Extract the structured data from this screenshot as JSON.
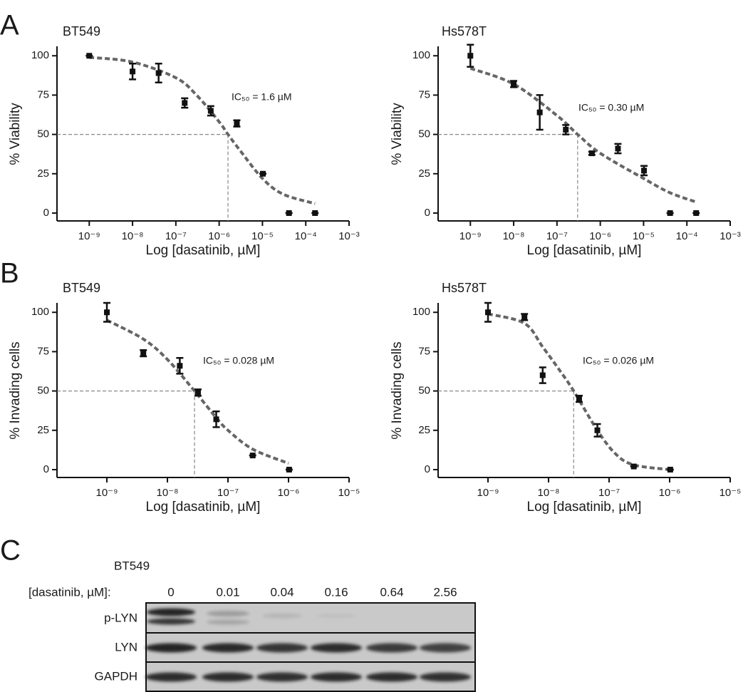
{
  "panel_labels": [
    "A",
    "B",
    "C"
  ],
  "chart_data": [
    {
      "type": "scatter",
      "title": "BT549",
      "ylabel": "% Viability",
      "xlabel": "Log [dasatinib, µM]",
      "xlog": true,
      "color": "#111111",
      "fit_color": "#666666",
      "x": [
        1e-09,
        1e-08,
        4e-08,
        1.6e-07,
        6.4e-07,
        2.56e-06,
        1.024e-05,
        4.096e-05,
        0.00016384
      ],
      "values": [
        100,
        90,
        89,
        70,
        65,
        57,
        25,
        0,
        0
      ],
      "errors": [
        0,
        5,
        6,
        3,
        3,
        2,
        0,
        0,
        0
      ],
      "fit": {
        "x": [
          1e-09,
          1e-08,
          1e-07,
          3e-07,
          1e-06,
          1.6e-06,
          3e-06,
          1e-05,
          3e-05,
          0.00016384
        ],
        "values": [
          99,
          96,
          86,
          75,
          58,
          50,
          40,
          22,
          12,
          6
        ]
      },
      "ic50": 1.6e-06,
      "hline": 50,
      "annotation": "IC₅₀ = 1.6 µM",
      "xlim": [
        1.8e-10,
        0.001
      ],
      "xticks": [
        {
          "value": 1e-09,
          "label": "10⁻⁹"
        },
        {
          "value": 1e-08,
          "label": "10⁻⁸"
        },
        {
          "value": 1e-07,
          "label": "10⁻⁷"
        },
        {
          "value": 1e-06,
          "label": "10⁻⁶"
        },
        {
          "value": 1e-05,
          "label": "10⁻⁵"
        },
        {
          "value": 0.0001,
          "label": "10⁻⁴"
        },
        {
          "value": 0.001,
          "label": "10⁻³"
        }
      ],
      "ylim": [
        -5,
        106
      ],
      "yticks": [
        0,
        25,
        50,
        75,
        100
      ]
    },
    {
      "type": "scatter",
      "title": "Hs578T",
      "ylabel": "% Viability",
      "xlabel": "Log [dasatinib, µM]",
      "xlog": true,
      "color": "#111111",
      "fit_color": "#666666",
      "x": [
        1e-09,
        1e-08,
        4e-08,
        1.6e-07,
        6.4e-07,
        2.56e-06,
        1.024e-05,
        4.096e-05,
        0.00016384
      ],
      "values": [
        100,
        82,
        64,
        53,
        38,
        41,
        27,
        0,
        0
      ],
      "errors": [
        7,
        2,
        11,
        3,
        1,
        3,
        3,
        0,
        0
      ],
      "fit": {
        "x": [
          1e-09,
          1e-08,
          1e-07,
          3e-07,
          1e-06,
          1e-05,
          4e-05,
          0.00016384
        ],
        "values": [
          92,
          82,
          62,
          50,
          38,
          22,
          13,
          7
        ]
      },
      "ic50": 3e-07,
      "hline": 50,
      "annotation": "IC₅₀ = 0.30 µM",
      "xlim": [
        1.8e-10,
        0.001
      ],
      "xticks": [
        {
          "value": 1e-09,
          "label": "10⁻⁹"
        },
        {
          "value": 1e-08,
          "label": "10⁻⁸"
        },
        {
          "value": 1e-07,
          "label": "10⁻⁷"
        },
        {
          "value": 1e-06,
          "label": "10⁻⁶"
        },
        {
          "value": 1e-05,
          "label": "10⁻⁵"
        },
        {
          "value": 0.0001,
          "label": "10⁻⁴"
        },
        {
          "value": 0.001,
          "label": "10⁻³"
        }
      ],
      "ylim": [
        -5,
        106
      ],
      "yticks": [
        0,
        25,
        50,
        75,
        100
      ]
    },
    {
      "type": "scatter",
      "title": "BT549",
      "ylabel": "% Invading cells",
      "xlabel": "Log [dasatinib, µM]",
      "xlog": true,
      "color": "#111111",
      "fit_color": "#666666",
      "x": [
        1e-09,
        4e-09,
        1.6e-08,
        3.2e-08,
        6.4e-08,
        2.56e-07,
        1.024e-06
      ],
      "values": [
        100,
        74,
        66,
        49,
        32,
        9,
        0
      ],
      "errors": [
        6,
        2,
        5,
        2,
        5,
        0,
        0
      ],
      "fit": {
        "x": [
          1e-09,
          4e-09,
          1e-08,
          2.8e-08,
          6.4e-08,
          1e-07,
          2.56e-07,
          1e-06
        ],
        "values": [
          95,
          83,
          70,
          50,
          33,
          25,
          13,
          4
        ]
      },
      "ic50": 2.8e-08,
      "hline": 50,
      "annotation": "IC₅₀ = 0.028 µM",
      "xlim": [
        1.5e-10,
        1e-05
      ],
      "xticks": [
        {
          "value": 1e-09,
          "label": "10⁻⁹"
        },
        {
          "value": 1e-08,
          "label": "10⁻⁸"
        },
        {
          "value": 1e-07,
          "label": "10⁻⁷"
        },
        {
          "value": 1e-06,
          "label": "10⁻⁶"
        },
        {
          "value": 1e-05,
          "label": "10⁻⁵"
        }
      ],
      "ylim": [
        -5,
        106
      ],
      "yticks": [
        0,
        25,
        50,
        75,
        100
      ]
    },
    {
      "type": "scatter",
      "title": "Hs578T",
      "ylabel": "% Invading cells",
      "xlabel": "Log [dasatinib, µM]",
      "xlog": true,
      "color": "#111111",
      "fit_color": "#666666",
      "x": [
        1e-09,
        4e-09,
        8e-09,
        3.2e-08,
        6.4e-08,
        2.56e-07,
        1.024e-06
      ],
      "values": [
        100,
        97,
        60,
        45,
        25,
        2,
        0
      ],
      "errors": [
        6,
        2,
        5,
        2,
        4,
        0,
        0
      ],
      "fit": {
        "x": [
          1e-09,
          4e-09,
          8e-09,
          1.6e-08,
          2.6e-08,
          6.4e-08,
          1.28e-07,
          2.56e-07,
          1e-06
        ],
        "values": [
          99,
          93,
          78,
          62,
          50,
          25,
          10,
          3,
          0
        ]
      },
      "ic50": 2.6e-08,
      "hline": 50,
      "annotation": "IC₅₀ = 0.026 µM",
      "xlim": [
        1.5e-10,
        1e-05
      ],
      "xticks": [
        {
          "value": 1e-09,
          "label": "10⁻⁹"
        },
        {
          "value": 1e-08,
          "label": "10⁻⁸"
        },
        {
          "value": 1e-07,
          "label": "10⁻⁷"
        },
        {
          "value": 1e-06,
          "label": "10⁻⁶"
        },
        {
          "value": 1e-05,
          "label": "10⁻⁵"
        }
      ],
      "ylim": [
        -5,
        106
      ],
      "yticks": [
        0,
        25,
        50,
        75,
        100
      ]
    }
  ],
  "blot": {
    "title": "BT549",
    "condition_label": "[dasatinib, µM]:",
    "concentrations": [
      "0",
      "0.01",
      "0.04",
      "0.16",
      "0.64",
      "2.56"
    ],
    "rows": [
      "p-LYN",
      "LYN",
      "GAPDH"
    ]
  }
}
